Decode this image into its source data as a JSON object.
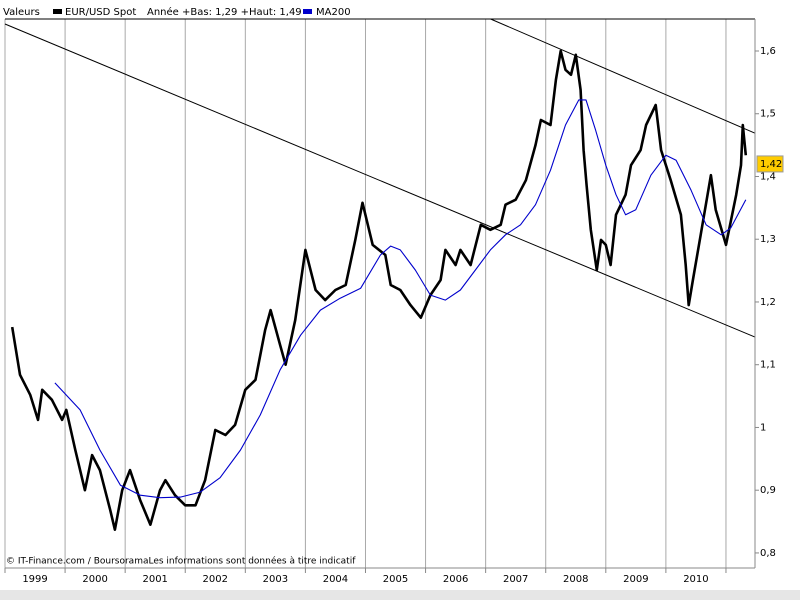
{
  "chart_data": {
    "type": "line",
    "header": "Valeurs",
    "stats": "Année +Bas: 1,29 +Haut: 1,49",
    "footer": "© IT-Finance.com / BoursoramaLes informations sont données à titre indicatif",
    "series": [
      {
        "name": "EUR/USD Spot",
        "color": "#000000",
        "x": [
          1999.12,
          1999.25,
          1999.42,
          1999.55,
          1999.62,
          1999.78,
          1999.95,
          2000.02,
          2000.17,
          2000.33,
          2000.45,
          2000.58,
          2000.75,
          2000.83,
          2000.95,
          2001.08,
          2001.25,
          2001.42,
          2001.58,
          2001.67,
          2001.83,
          2002.0,
          2002.17,
          2002.33,
          2002.5,
          2002.67,
          2002.83,
          2003.0,
          2003.17,
          2003.33,
          2003.42,
          2003.58,
          2003.67,
          2003.83,
          2004.0,
          2004.17,
          2004.33,
          2004.5,
          2004.67,
          2004.83,
          2004.95,
          2005.12,
          2005.33,
          2005.42,
          2005.58,
          2005.75,
          2005.92,
          2006.08,
          2006.25,
          2006.33,
          2006.5,
          2006.58,
          2006.75,
          2006.92,
          2007.08,
          2007.25,
          2007.33,
          2007.5,
          2007.67,
          2007.83,
          2007.92,
          2008.08,
          2008.17,
          2008.25,
          2008.33,
          2008.42,
          2008.5,
          2008.58,
          2008.63,
          2008.68,
          2008.75,
          2008.85,
          2008.92,
          2009.0,
          2009.08,
          2009.17,
          2009.33,
          2009.42,
          2009.58,
          2009.67,
          2009.83,
          2009.92,
          2010.08,
          2010.25,
          2010.33,
          2010.38,
          2010.45,
          2010.58,
          2010.75,
          2010.83,
          2011.0,
          2011.17,
          2011.25,
          2011.28,
          2011.33
        ],
        "values": [
          1.16,
          1.084,
          1.052,
          1.012,
          1.06,
          1.044,
          1.012,
          1.028,
          0.964,
          0.9,
          0.956,
          0.932,
          0.869,
          0.837,
          0.9,
          0.932,
          0.884,
          0.845,
          0.9,
          0.916,
          0.892,
          0.876,
          0.876,
          0.916,
          0.996,
          0.988,
          1.004,
          1.06,
          1.076,
          1.155,
          1.187,
          1.131,
          1.1,
          1.171,
          1.283,
          1.219,
          1.203,
          1.219,
          1.227,
          1.299,
          1.358,
          1.291,
          1.275,
          1.227,
          1.219,
          1.195,
          1.175,
          1.211,
          1.235,
          1.283,
          1.259,
          1.283,
          1.259,
          1.323,
          1.315,
          1.323,
          1.355,
          1.363,
          1.394,
          1.45,
          1.49,
          1.482,
          1.554,
          1.6,
          1.57,
          1.562,
          1.594,
          1.538,
          1.442,
          1.386,
          1.315,
          1.251,
          1.299,
          1.291,
          1.259,
          1.339,
          1.371,
          1.418,
          1.442,
          1.482,
          1.514,
          1.442,
          1.394,
          1.339,
          1.259,
          1.195,
          1.235,
          1.307,
          1.402,
          1.347,
          1.291,
          1.371,
          1.418,
          1.482,
          1.434
        ]
      },
      {
        "name": "MA200",
        "color": "#0000cc",
        "x": [
          1999.83,
          2000.25,
          2000.58,
          2000.92,
          2001.25,
          2001.58,
          2001.92,
          2002.25,
          2002.58,
          2002.92,
          2003.25,
          2003.58,
          2003.92,
          2004.25,
          2004.58,
          2004.92,
          2005.25,
          2005.42,
          2005.58,
          2005.83,
          2006.08,
          2006.33,
          2006.58,
          2006.83,
          2007.08,
          2007.33,
          2007.58,
          2007.83,
          2008.08,
          2008.33,
          2008.55,
          2008.67,
          2008.83,
          2009.0,
          2009.17,
          2009.33,
          2009.5,
          2009.75,
          2010.0,
          2010.17,
          2010.42,
          2010.67,
          2010.92,
          2011.08,
          2011.33
        ],
        "values": [
          1.071,
          1.028,
          0.964,
          0.908,
          0.892,
          0.888,
          0.889,
          0.897,
          0.92,
          0.964,
          1.02,
          1.092,
          1.147,
          1.187,
          1.206,
          1.222,
          1.275,
          1.289,
          1.283,
          1.251,
          1.211,
          1.203,
          1.219,
          1.251,
          1.283,
          1.307,
          1.323,
          1.355,
          1.41,
          1.482,
          1.522,
          1.522,
          1.474,
          1.418,
          1.371,
          1.339,
          1.347,
          1.402,
          1.434,
          1.426,
          1.378,
          1.323,
          1.307,
          1.318,
          1.363
        ]
      }
    ],
    "trendlines": [
      {
        "color": "#000000",
        "x": [
          1999.0,
          2011.4833
        ],
        "values": [
          1.643,
          1.144
        ]
      },
      {
        "color": "#000000",
        "x": [
          2007.083,
          2011.4833
        ],
        "values": [
          1.651,
          1.469
        ]
      }
    ],
    "last_value": {
      "value": 1.42,
      "label": "1,42"
    },
    "xlim": [
      1999.0,
      2011.4833
    ],
    "ylim": [
      0.776,
      1.651
    ],
    "xticks": [
      1999,
      2000,
      2001,
      2002,
      2003,
      2004,
      2005,
      2006,
      2007,
      2008,
      2009,
      2010,
      {
        "value": 2011,
        "label": null
      }
    ],
    "yticks": [
      {
        "value": 0.8,
        "label": "0,8"
      },
      {
        "value": 0.9,
        "label": "0,9"
      },
      1,
      {
        "value": 1.1,
        "label": "1,1"
      },
      {
        "value": 1.2,
        "label": "1,2"
      },
      {
        "value": 1.3,
        "label": "1,3"
      },
      {
        "value": 1.4,
        "label": "1,4"
      },
      {
        "value": 1.5,
        "label": "1,5"
      },
      {
        "value": 1.6,
        "label": "1,6"
      }
    ],
    "grid": "x"
  }
}
